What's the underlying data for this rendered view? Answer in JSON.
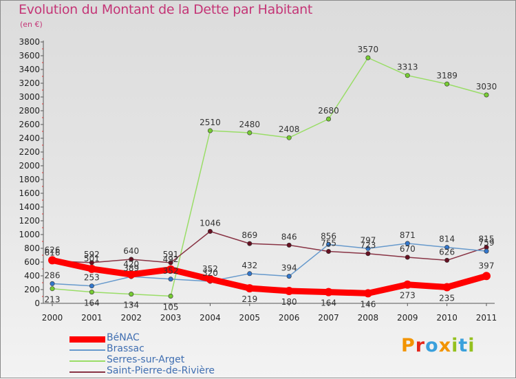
{
  "title": "Evolution du Montant de la Dette par Habitant",
  "unit": "(en €)",
  "logo": {
    "letters": [
      "P",
      "r",
      "o",
      "x",
      "i",
      "t",
      "i"
    ],
    "colors": [
      "#f29400",
      "#e4261b",
      "#3aa0dc",
      "#f29400",
      "#95c11f",
      "#3aa0dc",
      "#95c11f"
    ]
  },
  "chart_data": {
    "type": "line",
    "title": "Evolution du Montant de la Dette par Habitant",
    "ylabel": "(en €)",
    "xlabel": "",
    "x": [
      "2000",
      "2001",
      "2002",
      "2003",
      "2004",
      "2005",
      "2006",
      "2007",
      "2008",
      "2009",
      "2010",
      "2011"
    ],
    "ylim": [
      0,
      3800
    ],
    "yticks": [
      0,
      200,
      400,
      600,
      800,
      1000,
      1200,
      1400,
      1600,
      1800,
      2000,
      2200,
      2400,
      2600,
      2800,
      3000,
      3200,
      3400,
      3600,
      3800
    ],
    "grid": false,
    "legend_position": "bottom-left",
    "series": [
      {
        "name": "Serres-sur-Arget",
        "color": "#99dd66",
        "marker": "#77cc33",
        "width": 1.5,
        "values": [
          213,
          164,
          134,
          105,
          2510,
          2480,
          2408,
          2680,
          3570,
          3313,
          3189,
          3030
        ]
      },
      {
        "name": "Saint-Pierre-de-Rivière",
        "color": "#883344",
        "marker": "#661122",
        "width": 1.5,
        "values": [
          616,
          592,
          640,
          591,
          1046,
          869,
          846,
          755,
          723,
          670,
          626,
          815
        ]
      },
      {
        "name": "Brassac",
        "color": "#6699cc",
        "marker": "#3377cc",
        "width": 1.5,
        "values": [
          286,
          253,
          389,
          352,
          320,
          432,
          394,
          856,
          797,
          871,
          814,
          759
        ]
      },
      {
        "name": "BéNAC",
        "color": "#ff0000",
        "marker": "#ff0000",
        "width": 9,
        "values": [
          626,
          501,
          420,
          492,
          352,
          219,
          180,
          164,
          146,
          273,
          235,
          397
        ]
      }
    ],
    "legend_order": [
      "BéNAC",
      "Brassac",
      "Serres-sur-Arget",
      "Saint-Pierre-de-Rivière"
    ]
  }
}
